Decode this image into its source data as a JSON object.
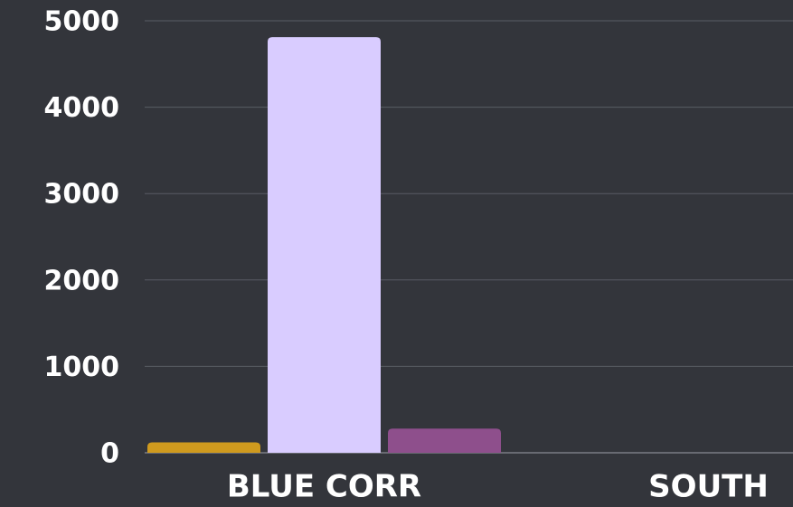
{
  "chart_data": {
    "type": "bar",
    "categories": [
      "BLUE CORR",
      "SOUTH"
    ],
    "series": [
      {
        "color": "#cf9a1e",
        "values": [
          120,
          0
        ]
      },
      {
        "color": "#d9ccff",
        "values": [
          4810,
          0
        ]
      },
      {
        "color": "#8e4f8c",
        "values": [
          280,
          0
        ]
      }
    ],
    "ylim": [
      0,
      5000
    ],
    "yticks": [
      0,
      1000,
      2000,
      3000,
      4000,
      5000
    ],
    "grid": true
  }
}
